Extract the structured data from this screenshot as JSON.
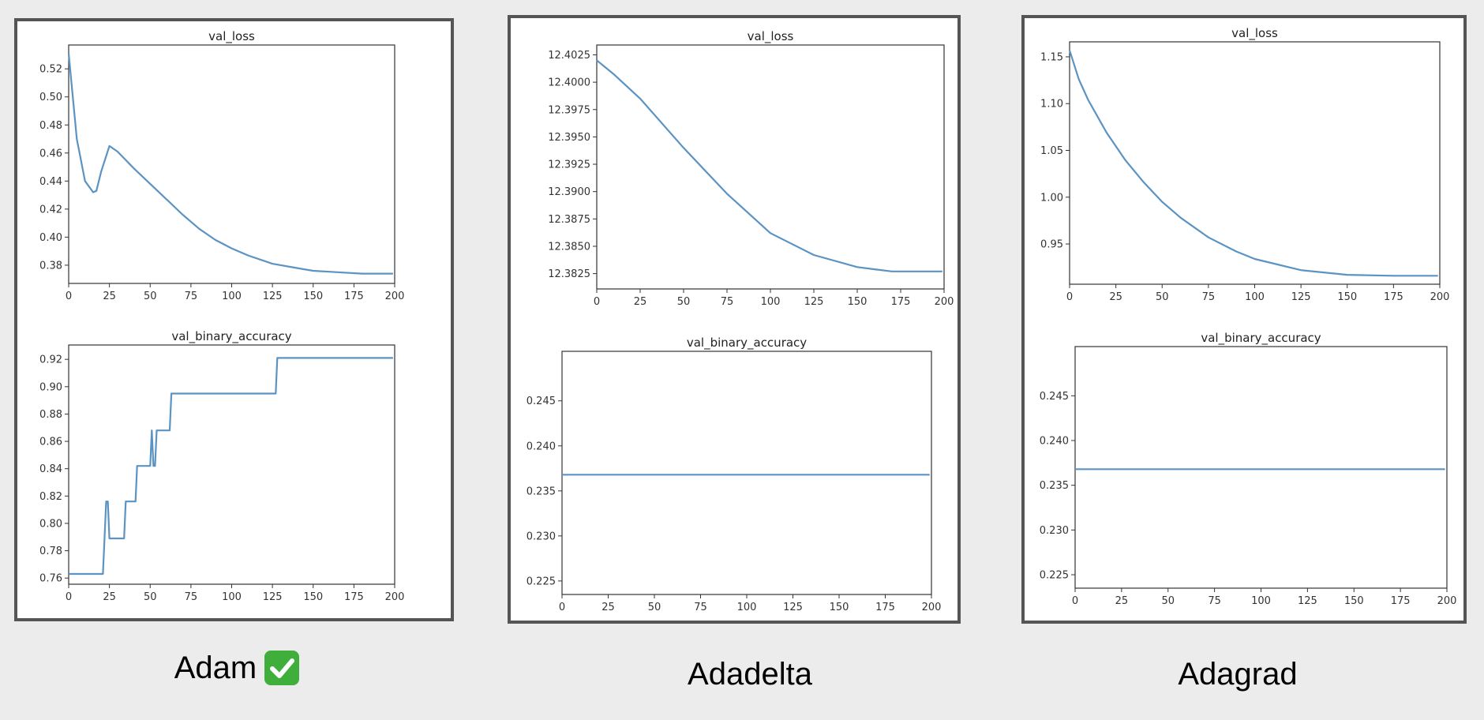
{
  "labels": {
    "adam": "Adam",
    "adadelta": "Adadelta",
    "adagrad": "Adagrad",
    "adam_badge_icon": "check-mark-button-icon"
  },
  "colors": {
    "line": "#5b93c3",
    "panel_border": "#555555",
    "background": "#ececec"
  },
  "chart_data": [
    {
      "id": "adam-val-loss",
      "type": "line",
      "title": "val_loss",
      "xlim": [
        0,
        200
      ],
      "ylim": [
        0.367,
        0.537
      ],
      "x_ticks": [
        0,
        25,
        50,
        75,
        100,
        125,
        150,
        175,
        200
      ],
      "y_ticks": [
        0.38,
        0.4,
        0.42,
        0.44,
        0.46,
        0.48,
        0.5,
        0.52
      ],
      "y_decimals": 2,
      "series": [
        {
          "x": [
            0,
            5,
            10,
            15,
            17,
            20,
            25,
            30,
            40,
            50,
            60,
            70,
            80,
            90,
            100,
            110,
            125,
            140,
            150,
            165,
            180,
            199
          ],
          "y": [
            0.531,
            0.47,
            0.44,
            0.432,
            0.433,
            0.447,
            0.465,
            0.461,
            0.449,
            0.438,
            0.427,
            0.416,
            0.406,
            0.398,
            0.392,
            0.387,
            0.381,
            0.378,
            0.376,
            0.375,
            0.374,
            0.374
          ]
        }
      ]
    },
    {
      "id": "adam-val-binary-accuracy",
      "type": "line",
      "title": "val_binary_accuracy",
      "xlim": [
        0,
        200
      ],
      "ylim": [
        0.7555,
        0.9305
      ],
      "x_ticks": [
        0,
        25,
        50,
        75,
        100,
        125,
        150,
        175,
        200
      ],
      "y_ticks": [
        0.76,
        0.78,
        0.8,
        0.82,
        0.84,
        0.86,
        0.88,
        0.9,
        0.92
      ],
      "y_decimals": 2,
      "series": [
        {
          "x": [
            0,
            21,
            23,
            24,
            25,
            34,
            35,
            41,
            42,
            50,
            51,
            52,
            53,
            54,
            62,
            63,
            127,
            128,
            199
          ],
          "y": [
            0.763,
            0.763,
            0.816,
            0.816,
            0.789,
            0.789,
            0.816,
            0.816,
            0.842,
            0.842,
            0.868,
            0.842,
            0.842,
            0.868,
            0.868,
            0.895,
            0.895,
            0.921,
            0.921
          ]
        }
      ]
    },
    {
      "id": "adadelta-val-loss",
      "type": "line",
      "title": "val_loss",
      "xlim": [
        0,
        200
      ],
      "ylim": [
        12.3811,
        12.4034
      ],
      "x_ticks": [
        0,
        25,
        50,
        75,
        100,
        125,
        150,
        175,
        200
      ],
      "y_ticks": [
        12.3825,
        12.385,
        12.3875,
        12.39,
        12.3925,
        12.395,
        12.3975,
        12.4,
        12.4025
      ],
      "y_decimals": 4,
      "series": [
        {
          "x": [
            0,
            10,
            25,
            50,
            75,
            100,
            125,
            150,
            160,
            170,
            180,
            199
          ],
          "y": [
            12.402,
            12.4007,
            12.3985,
            12.394,
            12.3898,
            12.3862,
            12.3842,
            12.3831,
            12.3829,
            12.3827,
            12.3827,
            12.3827
          ]
        }
      ]
    },
    {
      "id": "adadelta-val-binary-accuracy",
      "type": "line",
      "title": "val_binary_accuracy",
      "xlim": [
        0,
        200
      ],
      "ylim": [
        0.2235,
        0.2505
      ],
      "x_ticks": [
        0,
        25,
        50,
        75,
        100,
        125,
        150,
        175,
        200
      ],
      "y_ticks": [
        0.225,
        0.23,
        0.235,
        0.24,
        0.245
      ],
      "y_decimals": 3,
      "series": [
        {
          "x": [
            0,
            199
          ],
          "y": [
            0.2368,
            0.2368
          ]
        }
      ]
    },
    {
      "id": "adagrad-val-loss",
      "type": "line",
      "title": "val_loss",
      "xlim": [
        0,
        200
      ],
      "ylim": [
        0.907,
        1.166
      ],
      "x_ticks": [
        0,
        25,
        50,
        75,
        100,
        125,
        150,
        175,
        200
      ],
      "y_ticks": [
        0.95,
        1.0,
        1.05,
        1.1,
        1.15
      ],
      "y_decimals": 2,
      "series": [
        {
          "x": [
            0,
            5,
            10,
            20,
            30,
            40,
            50,
            60,
            75,
            90,
            100,
            125,
            150,
            175,
            199
          ],
          "y": [
            1.157,
            1.126,
            1.104,
            1.069,
            1.04,
            1.016,
            0.995,
            0.978,
            0.957,
            0.942,
            0.934,
            0.922,
            0.917,
            0.916,
            0.916
          ]
        }
      ]
    },
    {
      "id": "adagrad-val-binary-accuracy",
      "type": "line",
      "title": "val_binary_accuracy",
      "xlim": [
        0,
        200
      ],
      "ylim": [
        0.2235,
        0.2505
      ],
      "x_ticks": [
        0,
        25,
        50,
        75,
        100,
        125,
        150,
        175,
        200
      ],
      "y_ticks": [
        0.225,
        0.23,
        0.235,
        0.24,
        0.245
      ],
      "y_decimals": 3,
      "series": [
        {
          "x": [
            0,
            199
          ],
          "y": [
            0.2368,
            0.2368
          ]
        }
      ]
    }
  ]
}
